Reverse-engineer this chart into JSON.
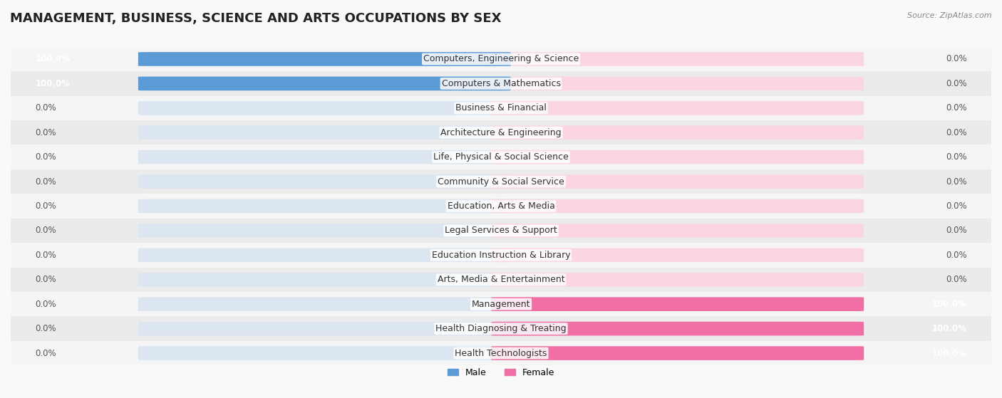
{
  "title": "MANAGEMENT, BUSINESS, SCIENCE AND ARTS OCCUPATIONS BY SEX",
  "source": "Source: ZipAtlas.com",
  "categories": [
    "Computers, Engineering & Science",
    "Computers & Mathematics",
    "Business & Financial",
    "Architecture & Engineering",
    "Life, Physical & Social Science",
    "Community & Social Service",
    "Education, Arts & Media",
    "Legal Services & Support",
    "Education Instruction & Library",
    "Arts, Media & Entertainment",
    "Management",
    "Health Diagnosing & Treating",
    "Health Technologists"
  ],
  "male_values": [
    100.0,
    100.0,
    0.0,
    0.0,
    0.0,
    0.0,
    0.0,
    0.0,
    0.0,
    0.0,
    0.0,
    0.0,
    0.0
  ],
  "female_values": [
    0.0,
    0.0,
    0.0,
    0.0,
    0.0,
    0.0,
    0.0,
    0.0,
    0.0,
    0.0,
    100.0,
    100.0,
    100.0
  ],
  "male_color": "#5b9bd5",
  "female_color": "#f06fa4",
  "male_label_color": "#5b9bd5",
  "female_label_color": "#f06fa4",
  "bar_bg_color": "#e8eaf0",
  "row_bg_colors": [
    "#f5f5f5",
    "#ebebeb"
  ],
  "title_fontsize": 13,
  "label_fontsize": 9,
  "value_fontsize": 8.5,
  "background_color": "#f9f9f9",
  "legend_male": "Male",
  "legend_female": "Female"
}
